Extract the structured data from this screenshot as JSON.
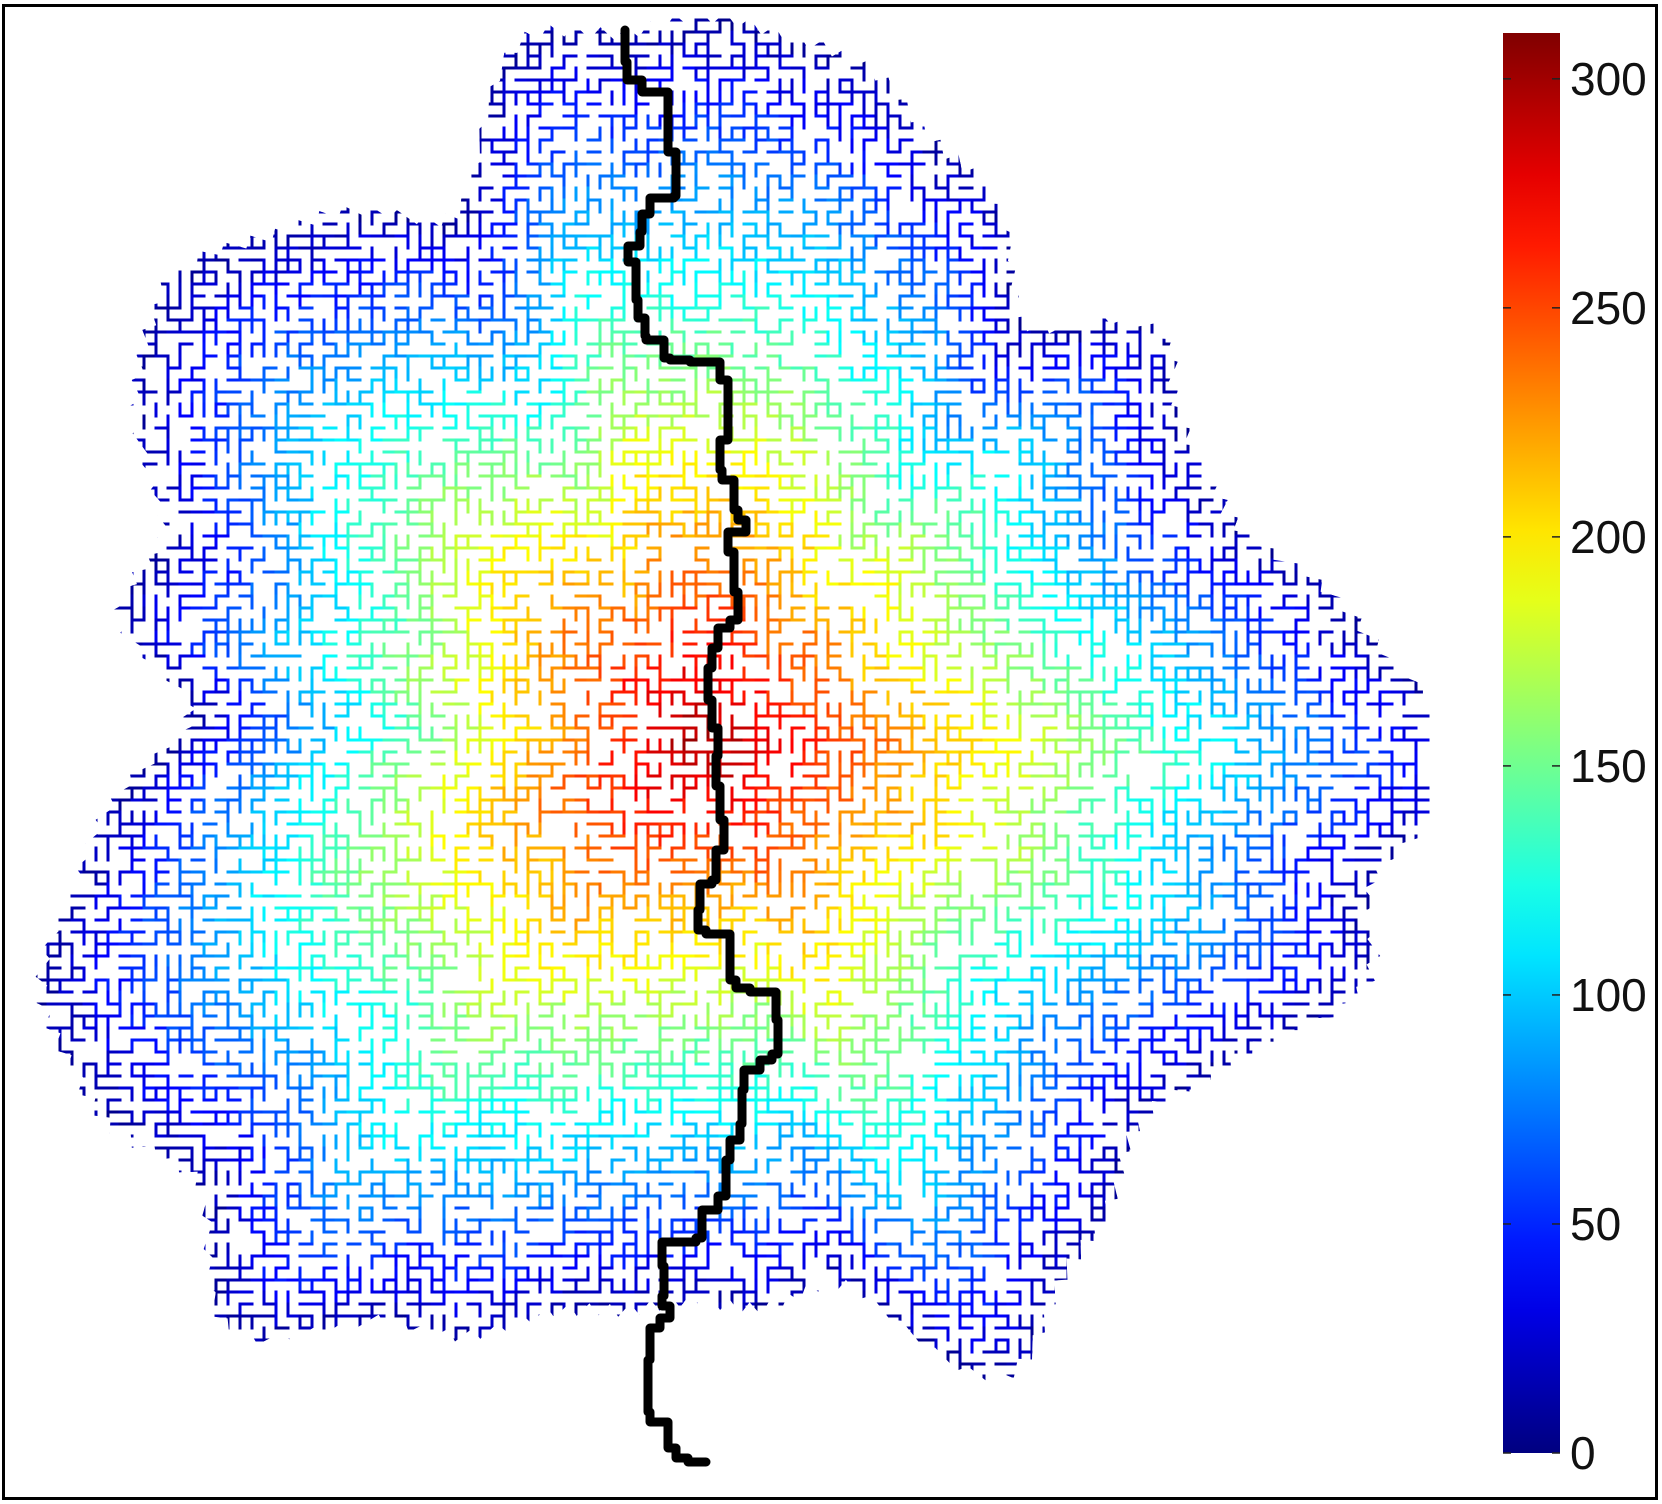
{
  "chart_data": {
    "type": "heatmap",
    "description_free": true,
    "colormap": "jet",
    "colorbar": {
      "min": 0,
      "max": 310,
      "ticks": [
        0,
        50,
        100,
        150,
        200,
        250,
        300
      ],
      "tick_labels": [
        "0",
        "50",
        "100",
        "150",
        "200",
        "250",
        "300"
      ],
      "placement": "right"
    },
    "grid": false,
    "colors": {
      "path": "#000000",
      "frame": "#000000"
    }
  }
}
